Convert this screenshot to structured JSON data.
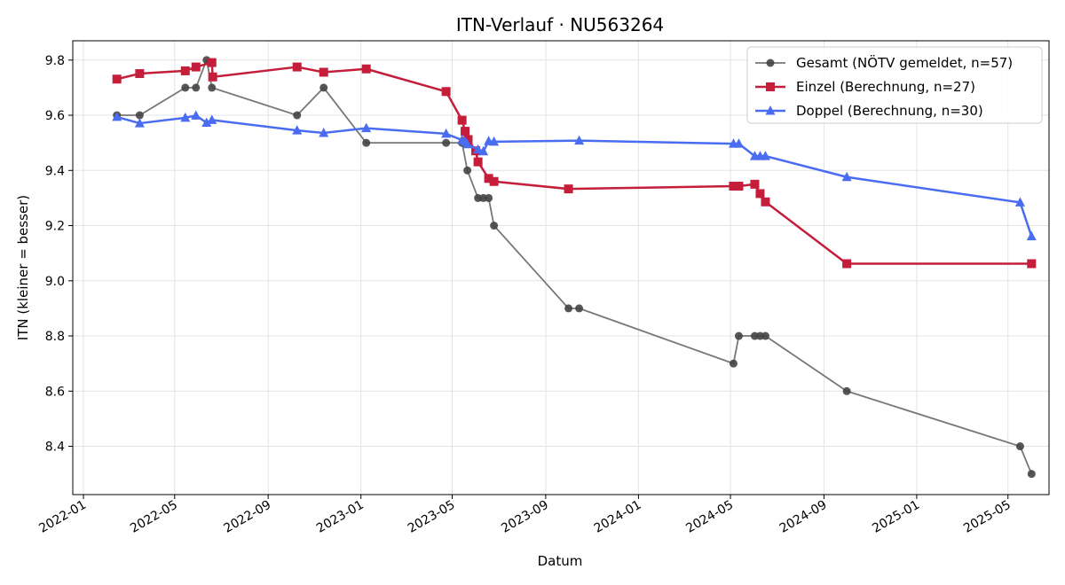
{
  "chart_data": {
    "type": "line",
    "title": "ITN-Verlauf · NU563264",
    "xlabel": "Datum",
    "ylabel": "ITN  (kleiner = besser)",
    "xlim": [
      "2021-12-18",
      "2025-06-24"
    ],
    "ylim": [
      8.225,
      9.87
    ],
    "x_ticks": [
      "2022-01",
      "2022-05",
      "2022-09",
      "2023-01",
      "2023-05",
      "2023-09",
      "2024-01",
      "2024-05",
      "2024-09",
      "2025-01",
      "2025-05"
    ],
    "y_ticks": [
      8.4,
      8.6,
      8.8,
      9.0,
      9.2,
      9.4,
      9.6,
      9.8
    ],
    "grid": true,
    "legend_position": "top-right",
    "series": [
      {
        "name": "Gesamt (NÖTV gemeldet, n=57)",
        "color": "#777777",
        "marker_color": "#444444",
        "marker": "circle",
        "points": [
          [
            "2022-02-14",
            9.6
          ],
          [
            "2022-03-16",
            9.6
          ],
          [
            "2022-05-15",
            9.7
          ],
          [
            "2022-05-29",
            9.7
          ],
          [
            "2022-06-12",
            9.8
          ],
          [
            "2022-06-19",
            9.7
          ],
          [
            "2022-10-09",
            9.6
          ],
          [
            "2022-11-13",
            9.7
          ],
          [
            "2023-01-08",
            9.5
          ],
          [
            "2023-04-23",
            9.5
          ],
          [
            "2023-05-14",
            9.5
          ],
          [
            "2023-05-21",
            9.4
          ],
          [
            "2023-06-04",
            9.3
          ],
          [
            "2023-06-11",
            9.3
          ],
          [
            "2023-06-18",
            9.3
          ],
          [
            "2023-06-25",
            9.2
          ],
          [
            "2023-10-01",
            8.9
          ],
          [
            "2023-10-15",
            8.9
          ],
          [
            "2024-05-05",
            8.7
          ],
          [
            "2024-05-12",
            8.8
          ],
          [
            "2024-06-02",
            8.8
          ],
          [
            "2024-06-09",
            8.8
          ],
          [
            "2024-06-16",
            8.8
          ],
          [
            "2024-10-01",
            8.6
          ],
          [
            "2025-05-17",
            8.4
          ],
          [
            "2025-06-01",
            8.3
          ]
        ]
      },
      {
        "name": "Einzel (Berechnung, n=27)",
        "color": "#C41E3A",
        "marker_color": "#C41E3A",
        "marker": "square",
        "points": [
          [
            "2022-02-14",
            9.731
          ],
          [
            "2022-03-16",
            9.751
          ],
          [
            "2022-05-15",
            9.761
          ],
          [
            "2022-05-29",
            9.775
          ],
          [
            "2022-06-19",
            9.791
          ],
          [
            "2022-06-20",
            9.739
          ],
          [
            "2022-10-09",
            9.775
          ],
          [
            "2022-11-13",
            9.756
          ],
          [
            "2023-01-08",
            9.768
          ],
          [
            "2023-04-23",
            9.686
          ],
          [
            "2023-05-14",
            9.582
          ],
          [
            "2023-05-18",
            9.542
          ],
          [
            "2023-05-22",
            9.512
          ],
          [
            "2023-06-01",
            9.471
          ],
          [
            "2023-06-04",
            9.431
          ],
          [
            "2023-06-18",
            9.371
          ],
          [
            "2023-06-25",
            9.36
          ],
          [
            "2023-10-01",
            9.333
          ],
          [
            "2024-05-05",
            9.343
          ],
          [
            "2024-05-12",
            9.343
          ],
          [
            "2024-06-02",
            9.35
          ],
          [
            "2024-06-09",
            9.316
          ],
          [
            "2024-06-16",
            9.286
          ],
          [
            "2024-10-01",
            9.062
          ],
          [
            "2025-06-01",
            9.062
          ]
        ]
      },
      {
        "name": "Doppel (Berechnung, n=30)",
        "color": "#4A6CF0",
        "marker_color": "#4A6CF0",
        "marker": "triangle",
        "points": [
          [
            "2022-02-14",
            9.594
          ],
          [
            "2022-03-16",
            9.571
          ],
          [
            "2022-05-15",
            9.591
          ],
          [
            "2022-05-29",
            9.599
          ],
          [
            "2022-06-12",
            9.573
          ],
          [
            "2022-06-19",
            9.583
          ],
          [
            "2022-10-09",
            9.545
          ],
          [
            "2022-11-13",
            9.536
          ],
          [
            "2023-01-08",
            9.553
          ],
          [
            "2023-04-23",
            9.533
          ],
          [
            "2023-05-14",
            9.51
          ],
          [
            "2023-05-18",
            9.504
          ],
          [
            "2023-05-21",
            9.495
          ],
          [
            "2023-06-04",
            9.476
          ],
          [
            "2023-06-11",
            9.469
          ],
          [
            "2023-06-18",
            9.506
          ],
          [
            "2023-06-25",
            9.504
          ],
          [
            "2023-10-15",
            9.508
          ],
          [
            "2024-05-05",
            9.497
          ],
          [
            "2024-05-12",
            9.497
          ],
          [
            "2024-06-02",
            9.452
          ],
          [
            "2024-06-09",
            9.452
          ],
          [
            "2024-06-16",
            9.452
          ],
          [
            "2024-10-01",
            9.376
          ],
          [
            "2025-05-17",
            9.284
          ],
          [
            "2025-06-01",
            9.161
          ]
        ]
      }
    ]
  }
}
